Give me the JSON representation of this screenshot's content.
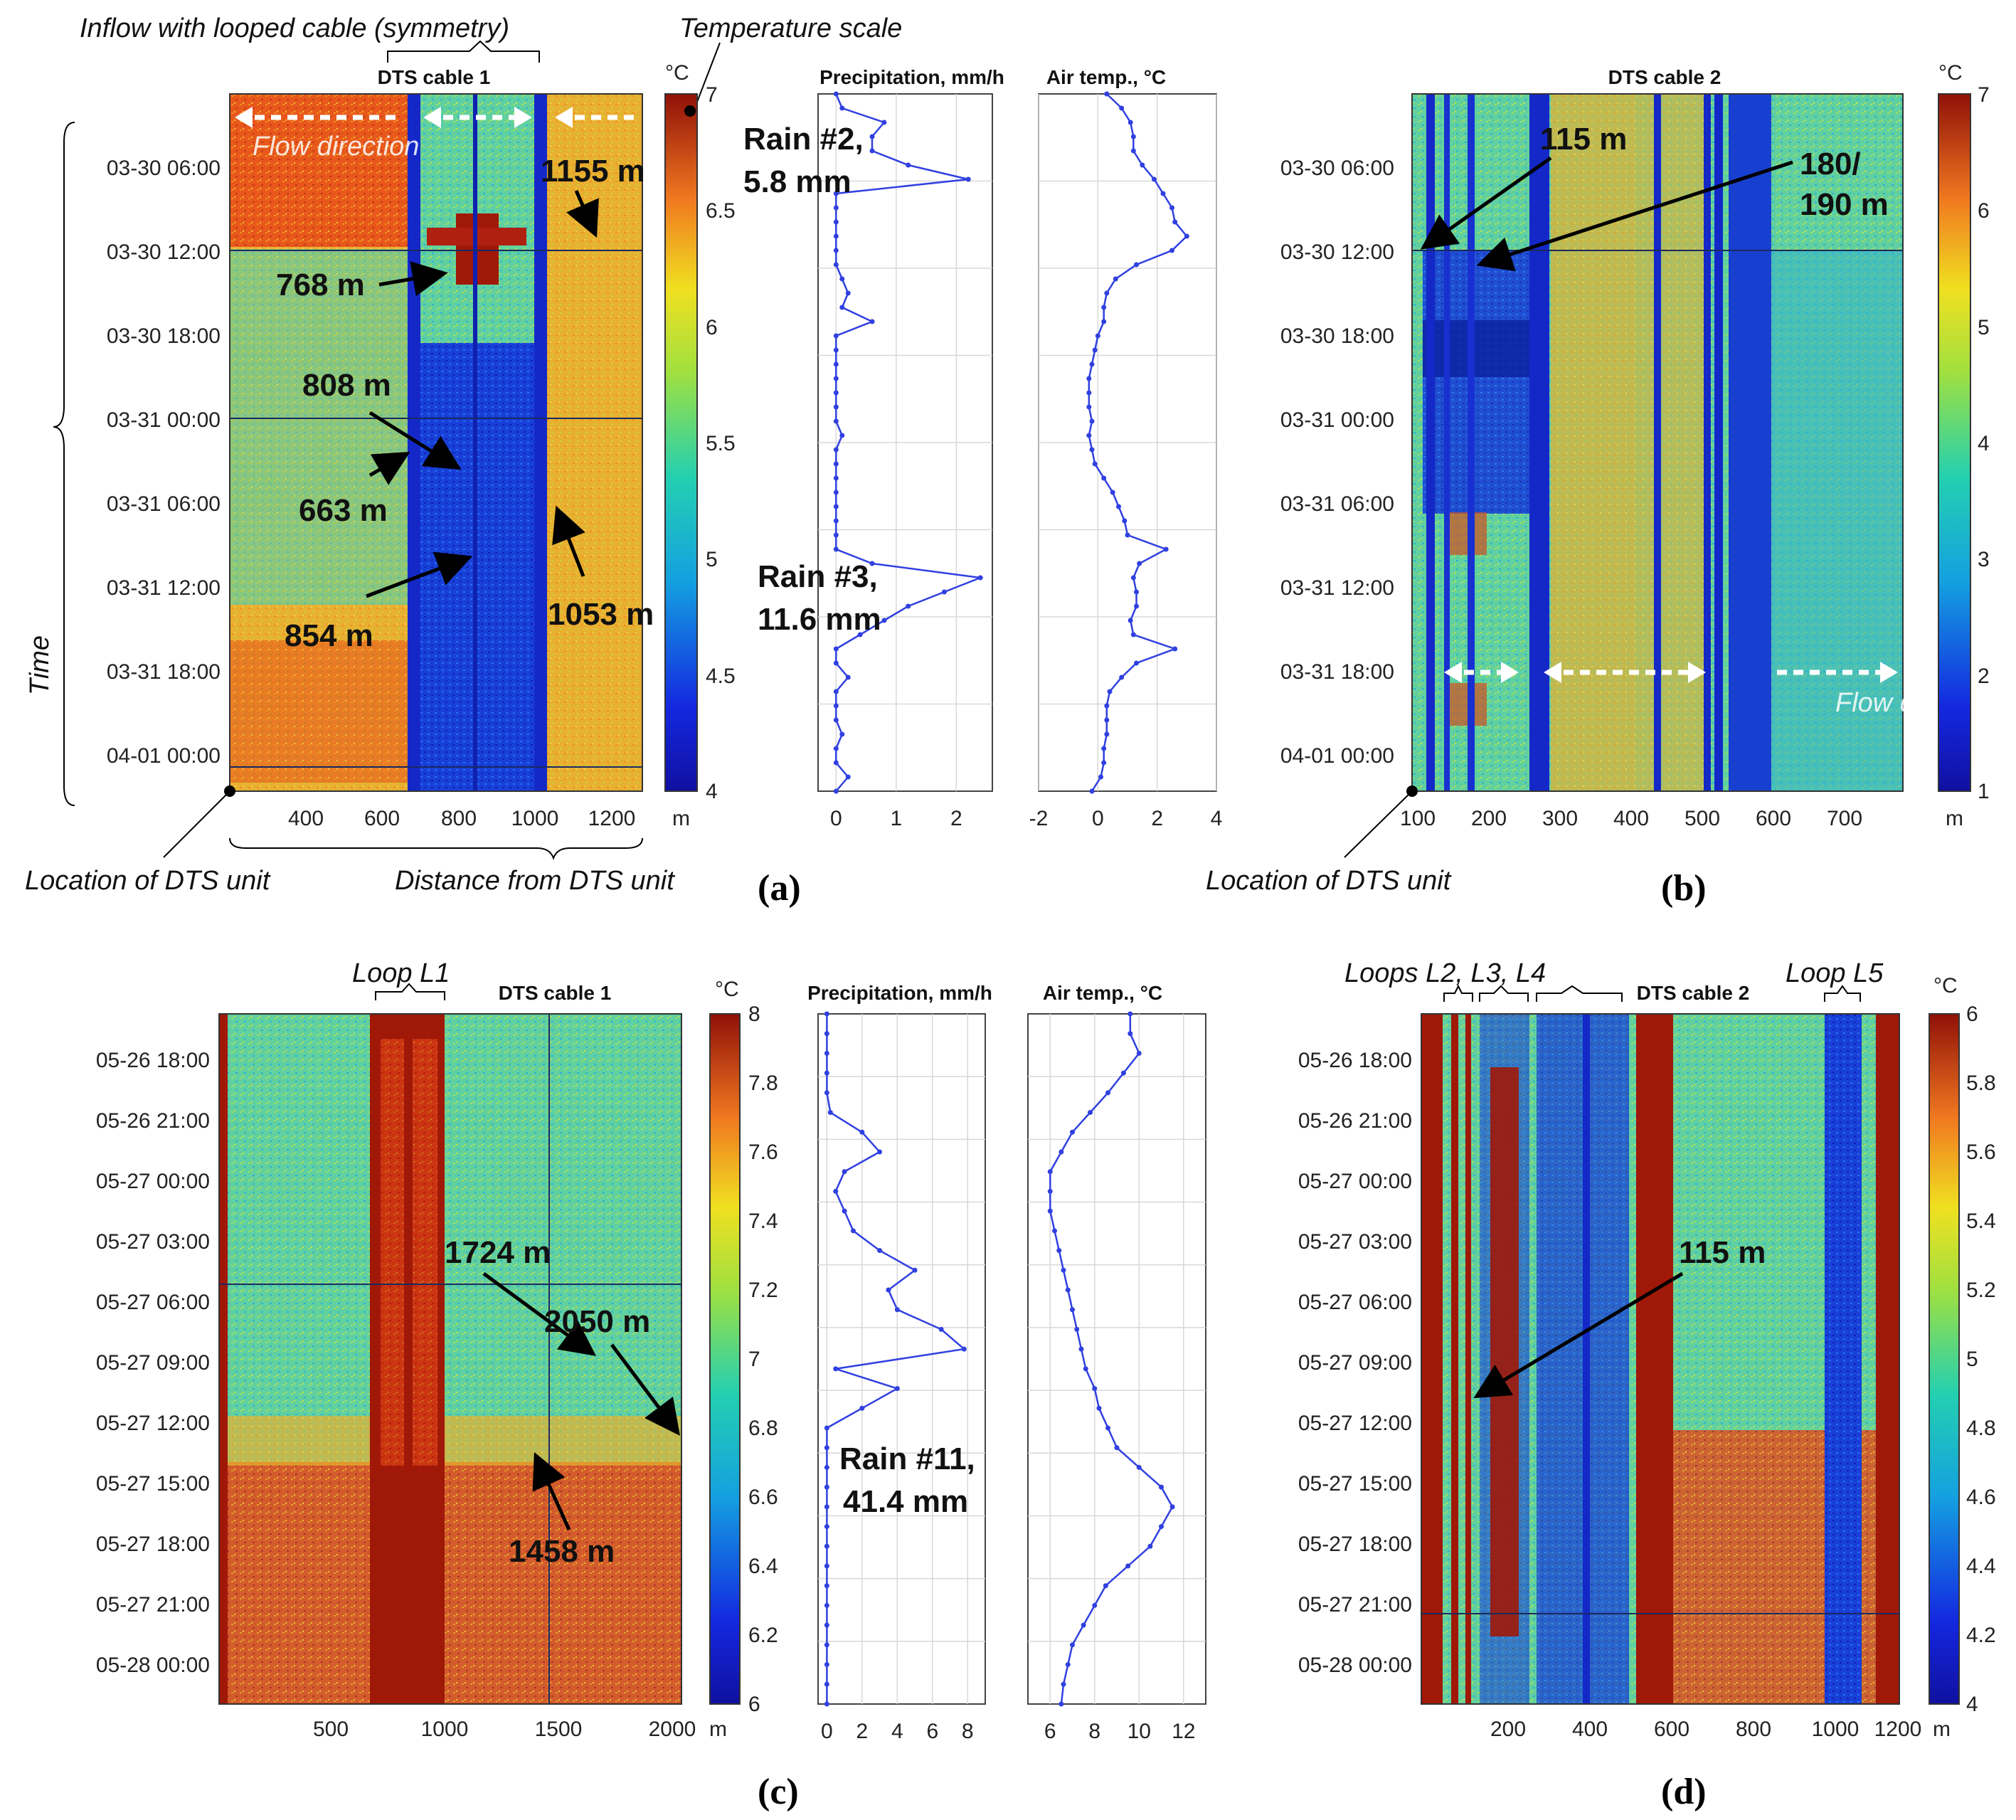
{
  "panels": {
    "a": {
      "label": "(a)",
      "heatmap": {
        "title": "DTS cable 1",
        "x_ticks": [
          "400",
          "600",
          "800",
          "1000",
          "1200"
        ],
        "x_unit": "m",
        "y_ticks": [
          "03-30 06:00",
          "03-30 12:00",
          "03-30 18:00",
          "03-31 00:00",
          "03-31 06:00",
          "03-31 12:00",
          "03-31 18:00",
          "04-01 00:00"
        ],
        "y_label": "Time",
        "colorbar": {
          "unit": "°C",
          "ticks": [
            "7",
            "6.5",
            "6",
            "5.5",
            "5",
            "4.5",
            "4"
          ],
          "bottom_unit": "m"
        }
      },
      "annotations": {
        "inflow": "Inflow with looped cable (symmetry)",
        "temp_scale": "Temperature scale",
        "flow": "Flow direction",
        "location": "Location of DTS unit",
        "distance": "Distance from DTS unit",
        "m1155": "1155 m",
        "m768": "768 m",
        "m808": "808 m",
        "m663": "663 m",
        "m854": "854 m",
        "m1053": "1053 m"
      },
      "precip": {
        "title": "Precipitation, mm/h",
        "x_ticks": [
          "0",
          "1",
          "2"
        ],
        "rain2a": "Rain #2,",
        "rain2b": "5.8 mm",
        "rain3a": "Rain #3,",
        "rain3b": "11.6 mm"
      },
      "air": {
        "title": "Air temp., °C",
        "x_ticks": [
          "-2",
          "0",
          "2",
          "4"
        ]
      }
    },
    "b": {
      "label": "(b)",
      "heatmap": {
        "title": "DTS cable 2",
        "x_ticks": [
          "100",
          "200",
          "300",
          "400",
          "500",
          "600",
          "700"
        ],
        "x_unit": "m",
        "y_ticks": [
          "03-30 06:00",
          "03-30 12:00",
          "03-30 18:00",
          "03-31 00:00",
          "03-31 06:00",
          "03-31 12:00",
          "03-31 18:00",
          "04-01 00:00"
        ],
        "colorbar": {
          "unit": "°C",
          "ticks": [
            "7",
            "6",
            "5",
            "4",
            "3",
            "2",
            "1"
          ],
          "bottom_unit": "m"
        }
      },
      "annotations": {
        "m115": "115 m",
        "m180a": "180/",
        "m180b": "190 m",
        "flow": "Flow direction",
        "location": "Location of DTS unit"
      }
    },
    "c": {
      "label": "(c)",
      "heatmap": {
        "title": "DTS cable 1",
        "x_ticks": [
          "500",
          "1000",
          "1500",
          "2000"
        ],
        "x_unit": "m",
        "y_ticks": [
          "05-26 18:00",
          "05-26 21:00",
          "05-27 00:00",
          "05-27 03:00",
          "05-27 06:00",
          "05-27 09:00",
          "05-27 12:00",
          "05-27 15:00",
          "05-27 18:00",
          "05-27 21:00",
          "05-28 00:00"
        ],
        "colorbar": {
          "unit": "°C",
          "ticks": [
            "8",
            "7.8",
            "7.6",
            "7.4",
            "7.2",
            "7",
            "6.8",
            "6.6",
            "6.4",
            "6.2",
            "6"
          ]
        }
      },
      "annotations": {
        "loop": "Loop L1",
        "m1724": "1724 m",
        "m2050": "2050 m",
        "m1458": "1458 m"
      },
      "precip": {
        "title": "Precipitation, mm/h",
        "x_ticks": [
          "0",
          "2",
          "4",
          "6",
          "8"
        ],
        "rain11a": "Rain #11,",
        "rain11b": "41.4 mm"
      },
      "air": {
        "title": "Air temp., °C",
        "x_ticks": [
          "6",
          "8",
          "10",
          "12"
        ]
      }
    },
    "d": {
      "label": "(d)",
      "heatmap": {
        "title": "DTS cable 2",
        "x_ticks": [
          "200",
          "400",
          "600",
          "800",
          "1000",
          "1200"
        ],
        "x_unit": "m",
        "y_ticks": [
          "05-26 18:00",
          "05-26 21:00",
          "05-27 00:00",
          "05-27 03:00",
          "05-27 06:00",
          "05-27 09:00",
          "05-27 12:00",
          "05-27 15:00",
          "05-27 18:00",
          "05-27 21:00",
          "05-28 00:00"
        ],
        "colorbar": {
          "unit": "°C",
          "ticks": [
            "6",
            "5.8",
            "5.6",
            "5.4",
            "5.2",
            "5",
            "4.8",
            "4.6",
            "4.4",
            "4.2",
            "4"
          ]
        }
      },
      "annotations": {
        "loops": "Loops L2, L3, L4",
        "loop5": "Loop L5",
        "m115": "115 m"
      }
    }
  },
  "chart_data": [
    {
      "type": "line",
      "panel": "a",
      "title": "Precipitation, mm/h",
      "x_unit": "mm/h",
      "xlim": [
        -0.3,
        2.6
      ],
      "orientation": "vertical",
      "y_hours_since_start": [
        0,
        1,
        2,
        3,
        4,
        5,
        6,
        7,
        8,
        9,
        10,
        11,
        12,
        13,
        14,
        15,
        16,
        17,
        18,
        19,
        20,
        21,
        22,
        23,
        24,
        25,
        26,
        27,
        28,
        29,
        30,
        31,
        32,
        33,
        34,
        35,
        36,
        37,
        38,
        39,
        40,
        41,
        42,
        43,
        44,
        45,
        46,
        47,
        48,
        49
      ],
      "values": [
        0,
        0.1,
        0.8,
        0.6,
        0.6,
        1.2,
        2.2,
        0,
        0,
        0,
        0,
        0,
        0,
        0.1,
        0.2,
        0.1,
        0.6,
        0,
        0,
        0,
        0,
        0,
        0,
        0,
        0.1,
        0,
        0,
        0,
        0,
        0,
        0,
        0,
        0,
        0.6,
        2.4,
        1.8,
        1.2,
        0.8,
        0.4,
        0,
        0,
        0.2,
        0,
        0,
        0,
        0.1,
        0,
        0,
        0.2,
        0
      ]
    },
    {
      "type": "line",
      "panel": "a",
      "title": "Air temp., °C",
      "x_unit": "°C",
      "xlim": [
        -2,
        4
      ],
      "orientation": "vertical",
      "y_hours_since_start": [
        0,
        1,
        2,
        3,
        4,
        5,
        6,
        7,
        8,
        9,
        10,
        11,
        12,
        13,
        14,
        15,
        16,
        17,
        18,
        19,
        20,
        21,
        22,
        23,
        24,
        25,
        26,
        27,
        28,
        29,
        30,
        31,
        32,
        33,
        34,
        35,
        36,
        37,
        38,
        39,
        40,
        41,
        42,
        43,
        44,
        45,
        46,
        47,
        48,
        49
      ],
      "values": [
        0.3,
        0.8,
        1.1,
        1.2,
        1.2,
        1.5,
        1.9,
        2.2,
        2.5,
        2.6,
        3.0,
        2.5,
        1.3,
        0.6,
        0.3,
        0.2,
        0.2,
        0.0,
        -0.1,
        -0.2,
        -0.3,
        -0.3,
        -0.3,
        -0.2,
        -0.3,
        -0.2,
        -0.1,
        0.2,
        0.5,
        0.7,
        0.9,
        1.0,
        2.3,
        1.4,
        1.2,
        1.3,
        1.3,
        1.1,
        1.2,
        2.6,
        1.3,
        0.8,
        0.4,
        0.3,
        0.3,
        0.3,
        0.2,
        0.2,
        0.1,
        -0.2
      ]
    },
    {
      "type": "line",
      "panel": "c",
      "title": "Precipitation, mm/h",
      "x_unit": "mm/h",
      "xlim": [
        -0.5,
        9
      ],
      "orientation": "vertical",
      "y_hours_since_start": [
        0,
        1,
        2,
        3,
        4,
        5,
        6,
        7,
        8,
        9,
        10,
        11,
        12,
        13,
        14,
        15,
        16,
        17,
        18,
        19,
        20,
        21,
        22,
        23,
        24,
        25,
        26,
        27,
        28,
        29,
        30,
        31,
        32,
        33,
        34,
        35
      ],
      "values": [
        0,
        0,
        0,
        0,
        0,
        0.2,
        2.0,
        3.0,
        1.0,
        0.5,
        1.0,
        1.5,
        3.0,
        5.0,
        3.5,
        4.0,
        6.5,
        7.8,
        0.5,
        4.0,
        2.0,
        0.0,
        0.0,
        0.0,
        0.0,
        0.0,
        0.0,
        0.0,
        0.0,
        0.0,
        0.0,
        0.0,
        0.0,
        0.0,
        0.0,
        0.0
      ]
    },
    {
      "type": "line",
      "panel": "c",
      "title": "Air temp., °C",
      "x_unit": "°C",
      "xlim": [
        5,
        13
      ],
      "orientation": "vertical",
      "y_hours_since_start": [
        0,
        1,
        2,
        3,
        4,
        5,
        6,
        7,
        8,
        9,
        10,
        11,
        12,
        13,
        14,
        15,
        16,
        17,
        18,
        19,
        20,
        21,
        22,
        23,
        24,
        25,
        26,
        27,
        28,
        29,
        30,
        31,
        32,
        33,
        34,
        35
      ],
      "values": [
        9.6,
        9.6,
        10.0,
        9.3,
        8.6,
        7.8,
        7.0,
        6.5,
        6.0,
        6.0,
        6.0,
        6.2,
        6.4,
        6.6,
        6.8,
        7.0,
        7.2,
        7.4,
        7.6,
        8.0,
        8.2,
        8.6,
        9.0,
        10.0,
        11.0,
        11.5,
        11.0,
        10.5,
        9.5,
        8.5,
        8.0,
        7.5,
        7.0,
        6.8,
        6.6,
        6.5
      ]
    },
    {
      "type": "heatmap",
      "panel": "a",
      "title": "DTS cable 1",
      "x_unit": "m",
      "xlim": [
        200,
        1300
      ],
      "colorbar_range": [
        4,
        7
      ]
    },
    {
      "type": "heatmap",
      "panel": "b",
      "title": "DTS cable 2",
      "x_unit": "m",
      "xlim": [
        90,
        780
      ],
      "colorbar_range": [
        1,
        7
      ]
    },
    {
      "type": "heatmap",
      "panel": "c",
      "title": "DTS cable 1",
      "x_unit": "m",
      "xlim": [
        0,
        2050
      ],
      "colorbar_range": [
        6,
        8
      ]
    },
    {
      "type": "heatmap",
      "panel": "d",
      "title": "DTS cable 2",
      "x_unit": "m",
      "xlim": [
        0,
        1250
      ],
      "colorbar_range": [
        4,
        6
      ]
    }
  ]
}
